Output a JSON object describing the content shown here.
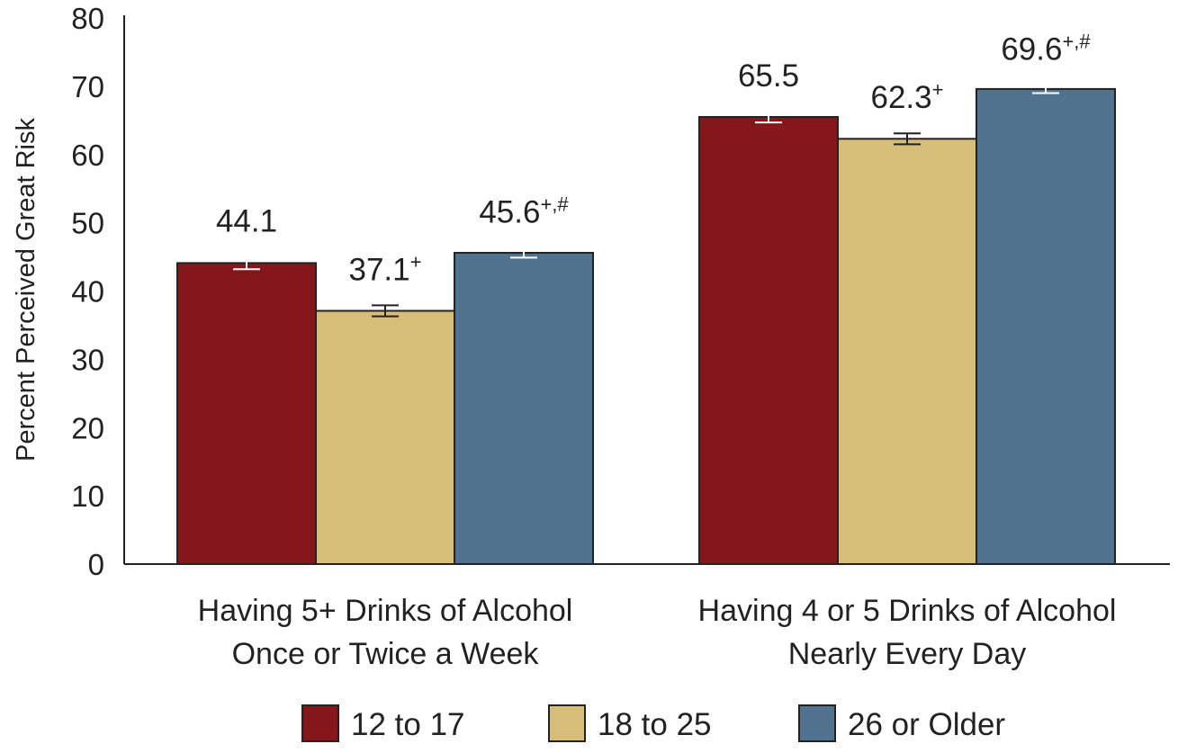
{
  "chart_data": {
    "type": "bar",
    "title": "",
    "xlabel": "",
    "ylabel": "Percent Perceived Great Risk",
    "ylim": [
      0,
      80
    ],
    "yticks": [
      "0",
      "10",
      "20",
      "30",
      "40",
      "50",
      "60",
      "70",
      "80"
    ],
    "grid": false,
    "legend_position": "bottom",
    "categories": [
      {
        "line1": "Having 5+ Drinks of Alcohol",
        "line2": "Once or Twice a Week"
      },
      {
        "line1": "Having 4 or 5 Drinks of Alcohol",
        "line2": "Nearly Every Day"
      }
    ],
    "series": [
      {
        "name": "12 to 17",
        "color": "#85171b",
        "error_color": "#ffffff",
        "values": [
          44.1,
          65.5
        ],
        "labels": [
          "44.1",
          "65.5"
        ],
        "superscripts": [
          "",
          ""
        ],
        "errors": [
          0.9,
          0.8
        ]
      },
      {
        "name": "18 to 25",
        "color": "#d6bd78",
        "error_color": "#222222",
        "values": [
          37.1,
          62.3
        ],
        "labels": [
          "37.1",
          "62.3"
        ],
        "superscripts": [
          "+",
          "+"
        ],
        "errors": [
          0.8,
          0.8
        ]
      },
      {
        "name": "26 or Older",
        "color": "#50728e",
        "error_color": "#ffffff",
        "values": [
          45.6,
          69.6
        ],
        "labels": [
          "45.6",
          "69.6"
        ],
        "superscripts": [
          "+,#",
          "+,#"
        ],
        "errors": [
          0.7,
          0.6
        ]
      }
    ]
  }
}
